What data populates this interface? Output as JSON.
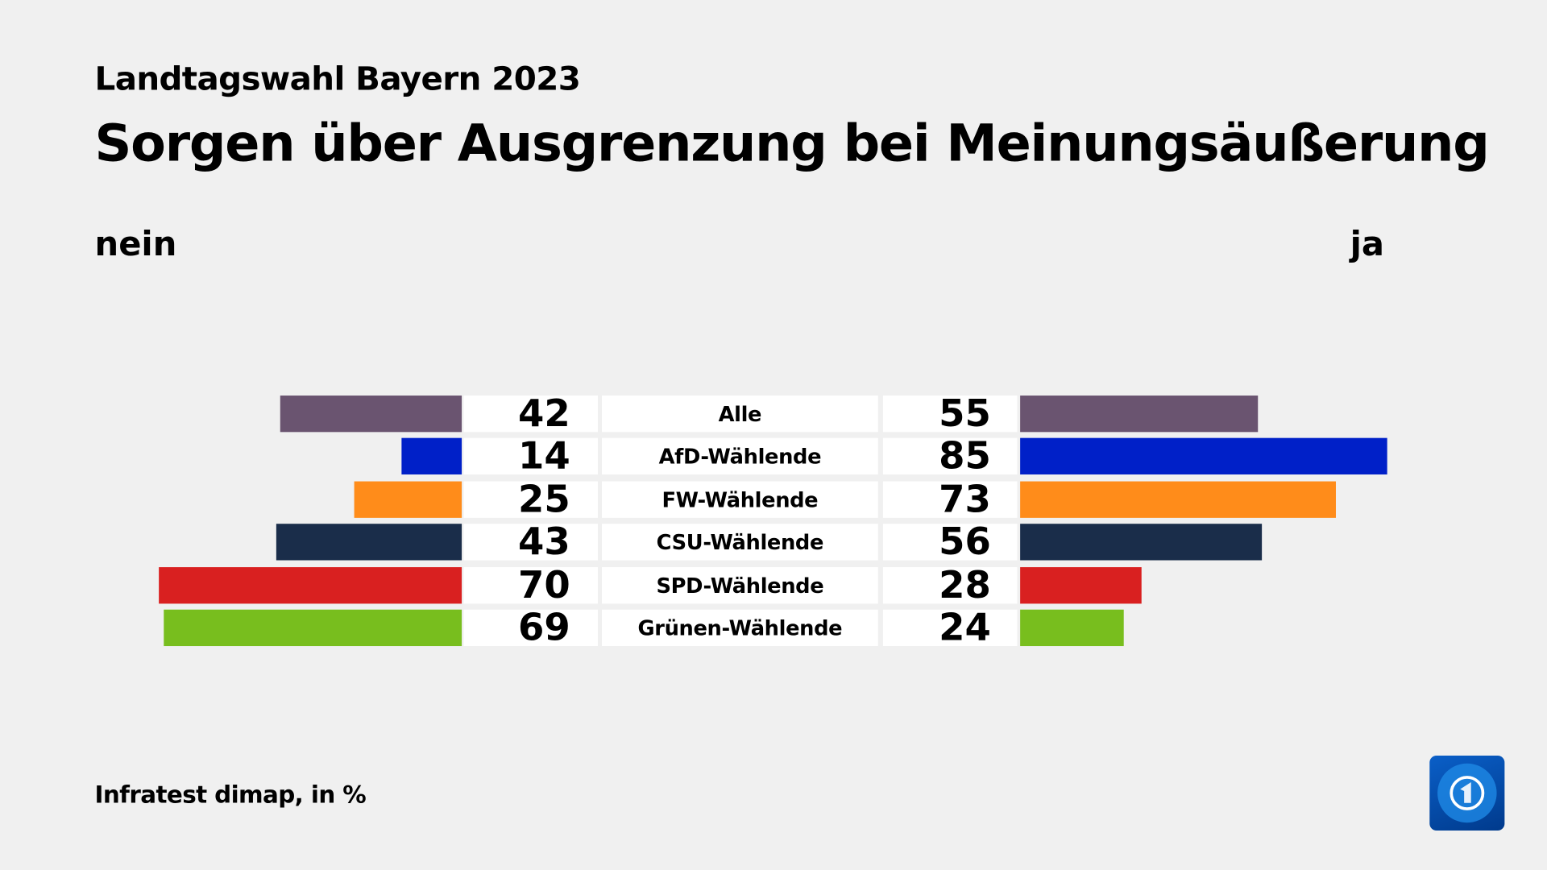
{
  "subtitle": "Landtagswahl Bayern 2023",
  "title": "Sorgen über Ausgrenzung bei Meinungsäußerung",
  "left_label": "nein",
  "right_label": "ja",
  "source": "Infratest dimap, in %",
  "logo": "tagesschau",
  "chart_data": {
    "type": "bar",
    "orientation": "horizontal-diverging",
    "title": "Sorgen über Ausgrenzung bei Meinungsäußerung",
    "categories": [
      "Alle",
      "AfD-Wählende",
      "FW-Wählende",
      "CSU-Wählende",
      "SPD-Wählende",
      "Grünen-Wählende"
    ],
    "colors": [
      "#6a5470",
      "#0020c8",
      "#ff8c1a",
      "#1a2d4a",
      "#d92020",
      "#78be1e"
    ],
    "series": [
      {
        "name": "nein",
        "values": [
          42,
          14,
          25,
          43,
          70,
          69
        ]
      },
      {
        "name": "ja",
        "values": [
          55,
          85,
          73,
          56,
          28,
          24
        ]
      }
    ],
    "unit": "%",
    "grid": false
  }
}
